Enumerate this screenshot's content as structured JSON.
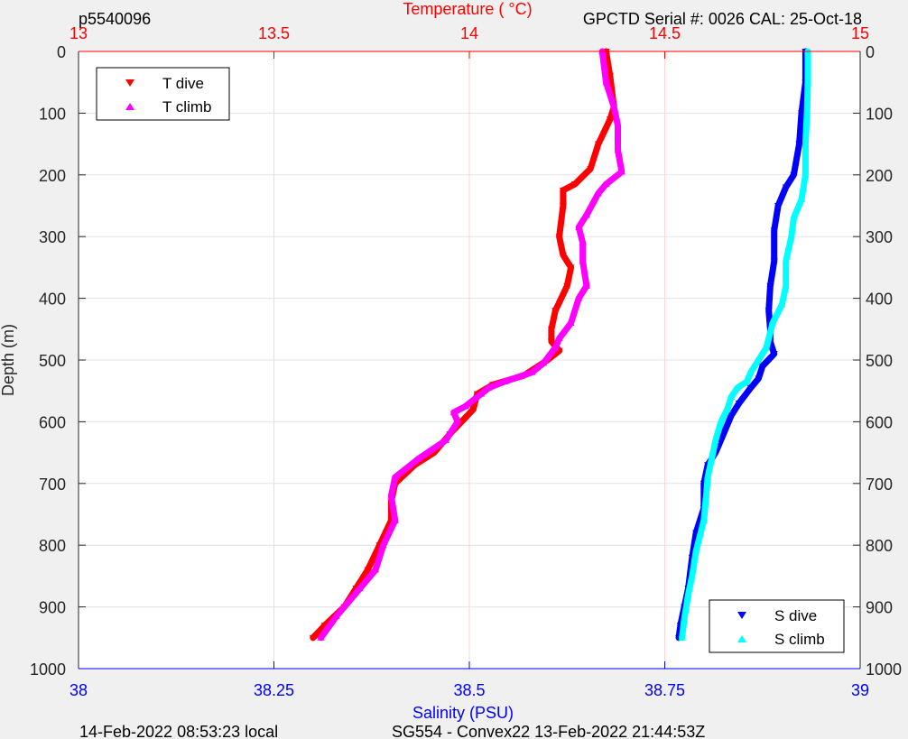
{
  "header": {
    "profile_id": "p5540096",
    "serial_info": "GPCTD Serial #: 0026 CAL: 25-Oct-18"
  },
  "footer": {
    "local_time": "14-Feb-2022 08:53:23 local",
    "mission": "SG554 - Convex22 13-Feb-2022 21:44:53Z"
  },
  "colors": {
    "t_dive": "#ff0000",
    "t_climb": "#ff00ff",
    "s_dive": "#0000ff",
    "s_climb": "#00ffff",
    "temperature_axis": "#ff0000",
    "salinity_axis": "#0000ff"
  },
  "chart_data": {
    "type": "line",
    "temperature_axis": {
      "label": "Temperature (    °C)",
      "range": [
        13,
        15
      ],
      "ticks": [
        "13",
        "13.5",
        "14",
        "14.5",
        "15"
      ],
      "position": "top"
    },
    "salinity_axis": {
      "label": "Salinity (PSU)",
      "range": [
        38,
        39
      ],
      "ticks": [
        "38",
        "38.25",
        "38.5",
        "38.75",
        "39"
      ],
      "position": "bottom"
    },
    "depth_axis": {
      "label": "Depth (m)",
      "range": [
        0,
        1000
      ],
      "reversed": true,
      "ticks": [
        "0",
        "100",
        "200",
        "300",
        "400",
        "500",
        "600",
        "700",
        "800",
        "900",
        "1000"
      ]
    },
    "grid": true,
    "temperature_legend": {
      "placement": "top-left",
      "entries": [
        {
          "series": "T dive",
          "marker": "down-triangle"
        },
        {
          "series": "T climb",
          "marker": "up-triangle"
        }
      ]
    },
    "salinity_legend": {
      "placement": "bottom-right",
      "entries": [
        {
          "series": "S dive",
          "marker": "down-triangle"
        },
        {
          "series": "S climb",
          "marker": "up-triangle"
        }
      ]
    },
    "series": [
      {
        "name": "T dive",
        "axis": "temperature",
        "points": [
          [
            14.35,
            0
          ],
          [
            14.36,
            40
          ],
          [
            14.37,
            90
          ],
          [
            14.36,
            110
          ],
          [
            14.33,
            150
          ],
          [
            14.31,
            190
          ],
          [
            14.27,
            215
          ],
          [
            14.24,
            225
          ],
          [
            14.24,
            250
          ],
          [
            14.23,
            300
          ],
          [
            14.24,
            330
          ],
          [
            14.26,
            350
          ],
          [
            14.25,
            380
          ],
          [
            14.22,
            420
          ],
          [
            14.21,
            450
          ],
          [
            14.21,
            470
          ],
          [
            14.23,
            485
          ],
          [
            14.2,
            500
          ],
          [
            14.14,
            525
          ],
          [
            14.06,
            540
          ],
          [
            14.02,
            555
          ],
          [
            14.01,
            580
          ],
          [
            13.95,
            620
          ],
          [
            13.91,
            650
          ],
          [
            13.86,
            670
          ],
          [
            13.81,
            700
          ],
          [
            13.8,
            730
          ],
          [
            13.8,
            760
          ],
          [
            13.77,
            800
          ],
          [
            13.74,
            840
          ],
          [
            13.71,
            870
          ],
          [
            13.68,
            900
          ],
          [
            13.63,
            930
          ],
          [
            13.6,
            950
          ]
        ]
      },
      {
        "name": "T climb",
        "axis": "temperature",
        "points": [
          [
            13.62,
            950
          ],
          [
            13.66,
            915
          ],
          [
            13.72,
            870
          ],
          [
            13.76,
            840
          ],
          [
            13.78,
            800
          ],
          [
            13.81,
            760
          ],
          [
            13.8,
            720
          ],
          [
            13.81,
            690
          ],
          [
            13.87,
            660
          ],
          [
            13.94,
            630
          ],
          [
            13.97,
            600
          ],
          [
            13.96,
            585
          ],
          [
            13.99,
            575
          ],
          [
            14.03,
            555
          ],
          [
            14.05,
            545
          ],
          [
            14.09,
            535
          ],
          [
            14.16,
            520
          ],
          [
            14.19,
            505
          ],
          [
            14.22,
            480
          ],
          [
            14.23,
            465
          ],
          [
            14.26,
            440
          ],
          [
            14.28,
            400
          ],
          [
            14.3,
            380
          ],
          [
            14.29,
            340
          ],
          [
            14.29,
            310
          ],
          [
            14.28,
            285
          ],
          [
            14.3,
            265
          ],
          [
            14.33,
            230
          ],
          [
            14.35,
            215
          ],
          [
            14.39,
            195
          ],
          [
            14.38,
            160
          ],
          [
            14.38,
            120
          ],
          [
            14.37,
            90
          ],
          [
            14.35,
            50
          ],
          [
            14.34,
            0
          ]
        ]
      },
      {
        "name": "S dive",
        "axis": "salinity",
        "points": [
          [
            38.93,
            0
          ],
          [
            38.93,
            50
          ],
          [
            38.925,
            100
          ],
          [
            38.922,
            150
          ],
          [
            38.915,
            200
          ],
          [
            38.905,
            220
          ],
          [
            38.895,
            250
          ],
          [
            38.89,
            290
          ],
          [
            38.89,
            340
          ],
          [
            38.885,
            380
          ],
          [
            38.883,
            420
          ],
          [
            38.885,
            450
          ],
          [
            38.885,
            470
          ],
          [
            38.89,
            490
          ],
          [
            38.875,
            510
          ],
          [
            38.87,
            530
          ],
          [
            38.86,
            545
          ],
          [
            38.845,
            570
          ],
          [
            38.835,
            590
          ],
          [
            38.825,
            620
          ],
          [
            38.815,
            650
          ],
          [
            38.805,
            670
          ],
          [
            38.8,
            700
          ],
          [
            38.8,
            740
          ],
          [
            38.79,
            780
          ],
          [
            38.785,
            820
          ],
          [
            38.78,
            870
          ],
          [
            38.775,
            900
          ],
          [
            38.77,
            930
          ],
          [
            38.768,
            950
          ]
        ]
      },
      {
        "name": "S climb",
        "axis": "salinity",
        "points": [
          [
            38.772,
            950
          ],
          [
            38.775,
            920
          ],
          [
            38.78,
            880
          ],
          [
            38.785,
            850
          ],
          [
            38.79,
            810
          ],
          [
            38.8,
            760
          ],
          [
            38.803,
            720
          ],
          [
            38.805,
            690
          ],
          [
            38.81,
            660
          ],
          [
            38.815,
            630
          ],
          [
            38.822,
            600
          ],
          [
            38.83,
            580
          ],
          [
            38.835,
            560
          ],
          [
            38.843,
            545
          ],
          [
            38.855,
            535
          ],
          [
            38.86,
            520
          ],
          [
            38.87,
            500
          ],
          [
            38.88,
            480
          ],
          [
            38.888,
            440
          ],
          [
            38.9,
            410
          ],
          [
            38.905,
            380
          ],
          [
            38.905,
            340
          ],
          [
            38.912,
            300
          ],
          [
            38.915,
            270
          ],
          [
            38.925,
            240
          ],
          [
            38.93,
            200
          ],
          [
            38.93,
            150
          ],
          [
            38.932,
            100
          ],
          [
            38.933,
            50
          ],
          [
            38.933,
            0
          ]
        ]
      }
    ]
  }
}
